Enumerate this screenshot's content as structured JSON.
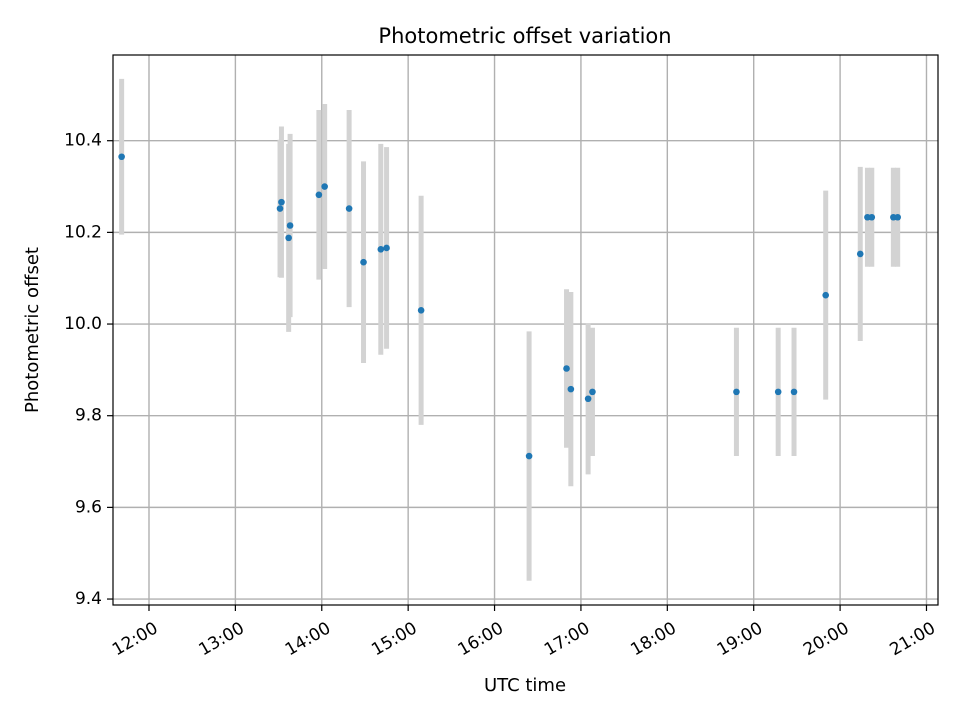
{
  "chart_data": {
    "type": "scatter",
    "title": "Photometric offset variation",
    "xlabel": "UTC time",
    "ylabel": "Photometric offset",
    "x_unit": "UTC time (HH:MM)",
    "xlim": [
      "11:35",
      "21:08"
    ],
    "ylim": [
      9.387,
      10.587
    ],
    "grid": true,
    "x_ticks": [
      "12:00",
      "13:00",
      "14:00",
      "15:00",
      "16:00",
      "17:00",
      "18:00",
      "19:00",
      "20:00",
      "21:00"
    ],
    "y_ticks": [
      "9.4",
      "9.6",
      "9.8",
      "10.0",
      "10.2",
      "10.4"
    ],
    "colors": {
      "points": "#1f77b4",
      "errorbars": "#d3d3d3",
      "grid": "#b0b0b0"
    },
    "series": [
      {
        "points": [
          {
            "x": "11:41",
            "y": 10.365,
            "yerr": 0.17
          },
          {
            "x": "13:31",
            "y": 10.252,
            "yerr": 0.15
          },
          {
            "x": "13:32",
            "y": 10.266,
            "yerr": 0.165
          },
          {
            "x": "13:37",
            "y": 10.188,
            "yerr": 0.205
          },
          {
            "x": "13:38",
            "y": 10.215,
            "yerr": 0.2
          },
          {
            "x": "13:58",
            "y": 10.282,
            "yerr": 0.185
          },
          {
            "x": "14:02",
            "y": 10.3,
            "yerr": 0.18
          },
          {
            "x": "14:19",
            "y": 10.252,
            "yerr": 0.215
          },
          {
            "x": "14:29",
            "y": 10.135,
            "yerr": 0.22
          },
          {
            "x": "14:41",
            "y": 10.163,
            "yerr": 0.23
          },
          {
            "x": "14:45",
            "y": 10.166,
            "yerr": 0.22
          },
          {
            "x": "15:09",
            "y": 10.03,
            "yerr": 0.25
          },
          {
            "x": "16:24",
            "y": 9.712,
            "yerr": 0.272
          },
          {
            "x": "16:50",
            "y": 9.903,
            "yerr": 0.173
          },
          {
            "x": "16:53",
            "y": 9.858,
            "yerr": 0.212
          },
          {
            "x": "17:05",
            "y": 9.837,
            "yerr": 0.165
          },
          {
            "x": "17:08",
            "y": 9.852,
            "yerr": 0.14
          },
          {
            "x": "18:48",
            "y": 9.852,
            "yerr": 0.14
          },
          {
            "x": "19:17",
            "y": 9.852,
            "yerr": 0.14
          },
          {
            "x": "19:28",
            "y": 9.852,
            "yerr": 0.14
          },
          {
            "x": "19:50",
            "y": 10.063,
            "yerr": 0.228
          },
          {
            "x": "20:14",
            "y": 10.153,
            "yerr": 0.19
          },
          {
            "x": "20:19",
            "y": 10.233,
            "yerr": 0.108
          },
          {
            "x": "20:22",
            "y": 10.233,
            "yerr": 0.108
          },
          {
            "x": "20:37",
            "y": 10.233,
            "yerr": 0.108
          },
          {
            "x": "20:40",
            "y": 10.233,
            "yerr": 0.108
          }
        ]
      }
    ]
  }
}
